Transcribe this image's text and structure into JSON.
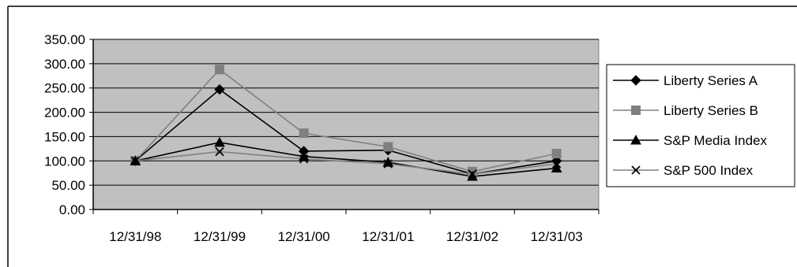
{
  "chart_data": {
    "type": "line",
    "title": "",
    "xlabel": "",
    "ylabel": "",
    "categories": [
      "12/31/98",
      "12/31/99",
      "12/31/00",
      "12/31/01",
      "12/31/02",
      "12/31/03"
    ],
    "ylim": [
      0,
      350
    ],
    "yticks": [
      "0.00",
      "50.00",
      "100.00",
      "150.00",
      "200.00",
      "250.00",
      "300.00",
      "350.00"
    ],
    "grid": true,
    "legend_position": "right",
    "plot_background": "#c0c0c0",
    "series": [
      {
        "name": "Liberty Series A",
        "color": "#000000",
        "marker": "diamond",
        "values": [
          100,
          247,
          120,
          122,
          73,
          100
        ]
      },
      {
        "name": "Liberty Series B",
        "color": "#808080",
        "marker": "square",
        "values": [
          100,
          288,
          157,
          129,
          78,
          115
        ]
      },
      {
        "name": "S&P Media Index",
        "color": "#000000",
        "marker": "triangle",
        "values": [
          100,
          138,
          109,
          97,
          68,
          85
        ]
      },
      {
        "name": "S&P 500 Index",
        "color": "#000000",
        "marker": "x",
        "line_color": "#808080",
        "values": [
          100,
          119,
          104,
          94,
          73,
          94
        ]
      }
    ]
  }
}
